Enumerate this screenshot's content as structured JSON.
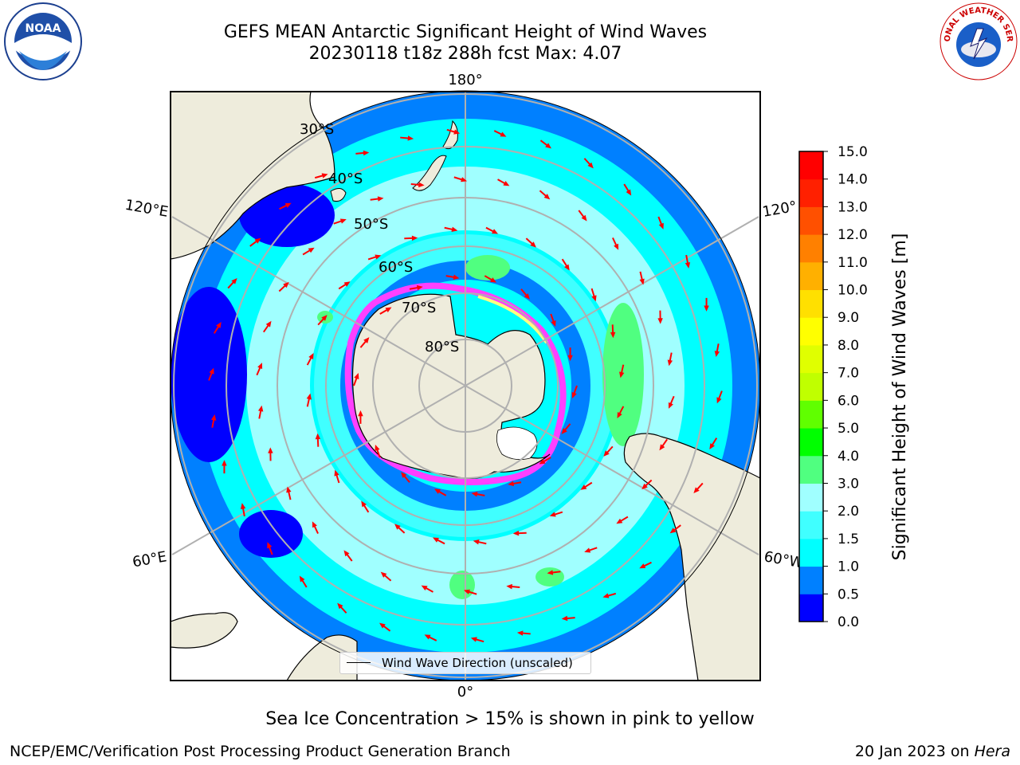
{
  "title": {
    "line1": "GEFS MEAN Antarctic Significant Height of Wind Waves",
    "line2": "20230118 t18z 288h fcst   Max: 4.07"
  },
  "map": {
    "projection": "south-polar-stereographic",
    "lat_labels": [
      "30°S",
      "40°S",
      "50°S",
      "60°S",
      "70°S",
      "80°S"
    ],
    "lon_labels": {
      "top": "180°",
      "bottom": "0°",
      "upper_left": "120°E",
      "lower_left": "60°E",
      "upper_right": "120°",
      "lower_right": "60°W"
    },
    "ocean_color": "#00ffff",
    "land_color": "#eeecdc",
    "arrow_color": "#ff0000"
  },
  "legend": {
    "label": "Wind Wave Direction (unscaled)"
  },
  "colorbar": {
    "label": "Significant Height of Wind Waves [m]",
    "min": 0,
    "max": 15,
    "ticks": [
      "0.0",
      "0.5",
      "1.0",
      "1.5",
      "2.0",
      "3.0",
      "4.0",
      "5.0",
      "6.0",
      "7.0",
      "8.0",
      "9.0",
      "10.0",
      "11.0",
      "12.0",
      "13.0",
      "14.0",
      "15.0"
    ],
    "colors": [
      "#0000ff",
      "#0080ff",
      "#00ffff",
      "#40ffff",
      "#a0ffff",
      "#50ff80",
      "#00ff00",
      "#60ff00",
      "#c0ff00",
      "#e0ff00",
      "#ffff00",
      "#ffe000",
      "#ffb000",
      "#ff8000",
      "#ff5000",
      "#ff2000",
      "#ff0000"
    ]
  },
  "footer": {
    "subtitle": "Sea Ice Concentration > 15% is shown in pink to yellow",
    "credit": "NCEP/EMC/Verification Post Processing Product Generation Branch",
    "stamp": "20 Jan 2023 on",
    "stamp_host": "Hera"
  },
  "logos": {
    "left": "NOAA",
    "right": "NATIONAL WEATHER SERVICE"
  }
}
